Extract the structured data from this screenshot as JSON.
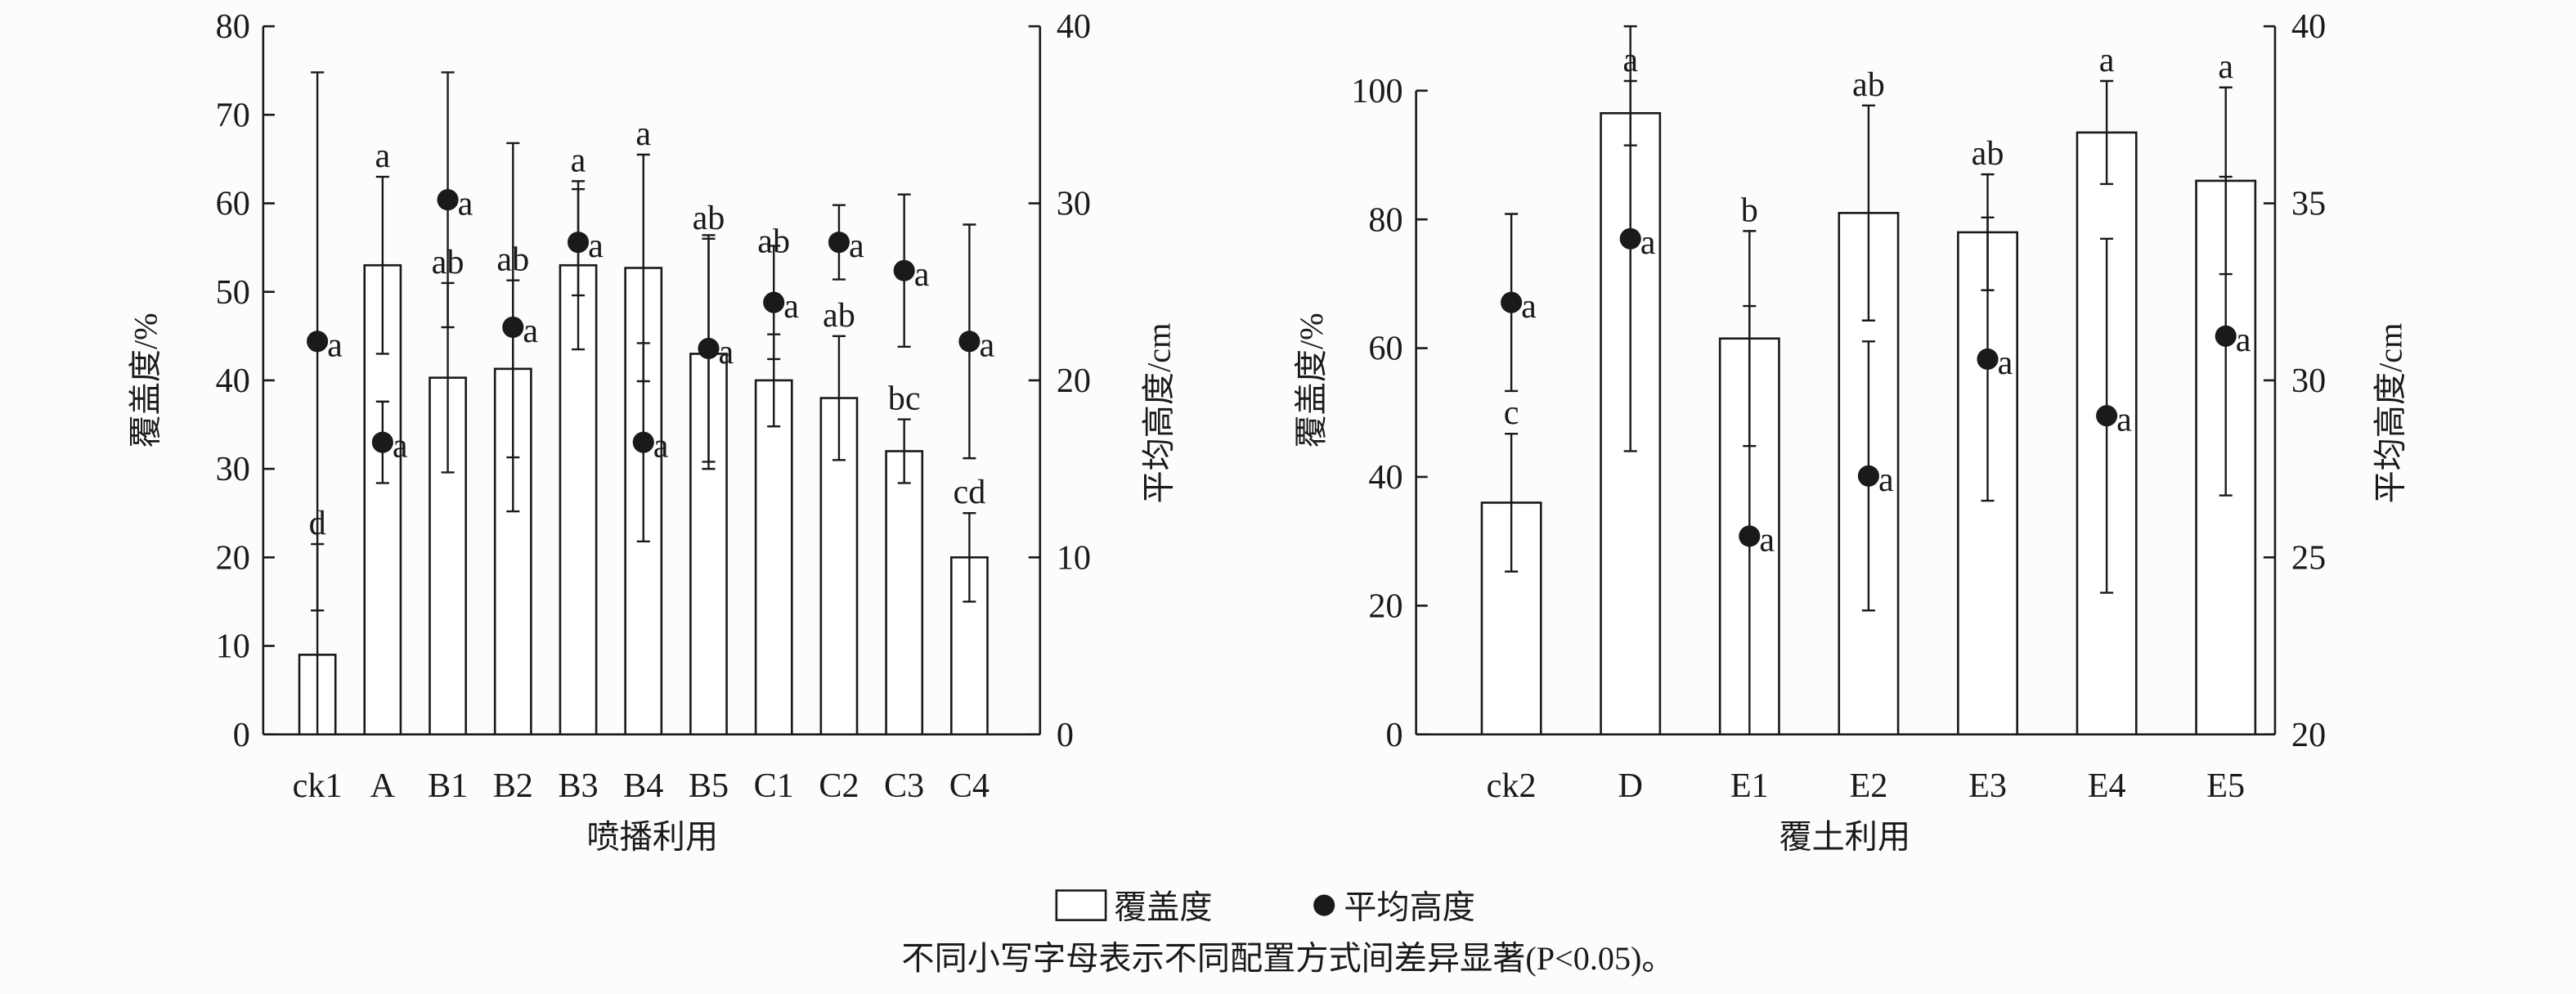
{
  "chart_data": [
    {
      "type": "bar",
      "title": "",
      "xlabel": "喷播利用",
      "ylabel": "覆盖度/%",
      "y2label": "平均高度/cm",
      "ylim": [
        0,
        80
      ],
      "y2lim": [
        0,
        40
      ],
      "yticks": [
        "0",
        "10",
        "20",
        "30",
        "40",
        "50",
        "60",
        "70",
        "80"
      ],
      "y2ticks": [
        "0",
        "10",
        "20",
        "30",
        "40"
      ],
      "categories": [
        "ck1",
        "A",
        "B1",
        "B2",
        "B3",
        "B4",
        "B5",
        "C1",
        "C2",
        "C3",
        "C4"
      ],
      "series": [
        {
          "name": "覆盖度",
          "kind": "bar",
          "values": [
            9,
            53,
            40.3,
            41.3,
            53,
            52.7,
            43,
            40,
            38,
            32,
            20
          ],
          "errors": [
            12.5,
            10,
            10.7,
            10,
            9.5,
            12.8,
            13,
            5.2,
            7,
            3.6,
            5
          ],
          "letters": [
            "d",
            "a",
            "ab",
            "ab",
            "a",
            "a",
            "ab",
            "ab",
            "ab",
            "bc",
            "cd"
          ]
        },
        {
          "name": "平均高度",
          "kind": "point",
          "axis": "right",
          "values": [
            22.2,
            16.5,
            30.2,
            23,
            27.8,
            16.5,
            21.8,
            24.4,
            27.8,
            26.2,
            22.2
          ],
          "errors": [
            15.2,
            2.3,
            7.2,
            10.4,
            3,
            5.6,
            6.4,
            3.2,
            2.1,
            4.3,
            6.6
          ],
          "letters": [
            "a",
            "a",
            "a",
            "a",
            "a",
            "a",
            "a",
            "a",
            "a",
            "a",
            "a"
          ]
        }
      ]
    },
    {
      "type": "bar",
      "title": "",
      "xlabel": "覆土利用",
      "ylabel": "覆盖度/%",
      "y2label": "平均高度/cm",
      "ylim": [
        0,
        110
      ],
      "y2lim": [
        20,
        40
      ],
      "yticks": [
        "0",
        "20",
        "40",
        "60",
        "80",
        "100"
      ],
      "y2ticks": [
        "20",
        "25",
        "30",
        "35",
        "40"
      ],
      "categories": [
        "ck2",
        "D",
        "E1",
        "E2",
        "E3",
        "E4",
        "E5"
      ],
      "series": [
        {
          "name": "覆盖度",
          "kind": "bar",
          "values": [
            36,
            96.5,
            61.5,
            81,
            78,
            93.5,
            86
          ],
          "errors": [
            10.7,
            5,
            16.7,
            16.7,
            9,
            8,
            14.5
          ],
          "letters": [
            "c",
            "a",
            "b",
            "ab",
            "ab",
            "a",
            "a"
          ]
        },
        {
          "name": "平均高度",
          "kind": "point",
          "axis": "right",
          "values": [
            32.2,
            34,
            25.6,
            27.3,
            30.6,
            29,
            31.25
          ],
          "errors": [
            2.5,
            6,
            6.5,
            3.8,
            4,
            5,
            4.5
          ],
          "letters": [
            "a",
            "a",
            "a",
            "a",
            "a",
            "a",
            "a"
          ]
        }
      ]
    }
  ],
  "legend": {
    "bar_label": "覆盖度",
    "point_label": "平均高度",
    "placement": "bottom-center"
  },
  "note": "不同小写字母表示不同配置方式间差异显著(P<0.05)。"
}
